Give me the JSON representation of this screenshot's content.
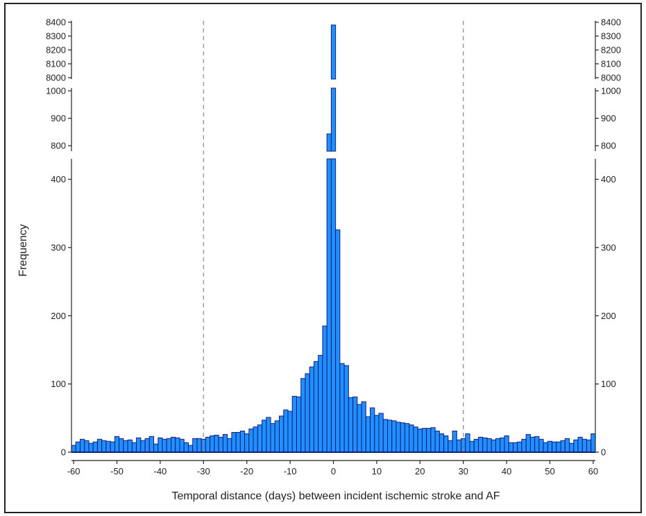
{
  "chart_data": {
    "type": "bar",
    "xlabel": "Temporal distance (days) between incident ischemic stroke and AF",
    "ylabel": "Frequency",
    "x": [
      -60,
      -59,
      -58,
      -57,
      -56,
      -55,
      -54,
      -53,
      -52,
      -51,
      -50,
      -49,
      -48,
      -47,
      -46,
      -45,
      -44,
      -43,
      -42,
      -41,
      -40,
      -39,
      -38,
      -37,
      -36,
      -35,
      -34,
      -33,
      -32,
      -31,
      -30,
      -29,
      -28,
      -27,
      -26,
      -25,
      -24,
      -23,
      -22,
      -21,
      -20,
      -19,
      -18,
      -17,
      -16,
      -15,
      -14,
      -13,
      -12,
      -11,
      -10,
      -9,
      -8,
      -7,
      -6,
      -5,
      -4,
      -3,
      -2,
      -1,
      0,
      1,
      2,
      3,
      4,
      5,
      6,
      7,
      8,
      9,
      10,
      11,
      12,
      13,
      14,
      15,
      16,
      17,
      18,
      19,
      20,
      21,
      22,
      23,
      24,
      25,
      26,
      27,
      28,
      29,
      30,
      31,
      32,
      33,
      34,
      35,
      36,
      37,
      38,
      39,
      40,
      41,
      42,
      43,
      44,
      45,
      46,
      47,
      48,
      49,
      50,
      51,
      52,
      53,
      54,
      55,
      56,
      57,
      58,
      59,
      60
    ],
    "values": [
      10,
      15,
      19,
      17,
      13,
      15,
      19,
      17,
      16,
      15,
      23,
      20,
      17,
      18,
      14,
      21,
      17,
      20,
      23,
      12,
      21,
      19,
      20,
      22,
      21,
      19,
      14,
      10,
      20,
      20,
      19,
      22,
      24,
      25,
      22,
      26,
      20,
      29,
      29,
      31,
      27,
      34,
      37,
      40,
      47,
      51,
      42,
      46,
      53,
      62,
      60,
      82,
      81,
      108,
      115,
      125,
      133,
      142,
      185,
      843,
      8380,
      326,
      130,
      127,
      80,
      81,
      70,
      74,
      52,
      65,
      54,
      57,
      48,
      47,
      46,
      44,
      43,
      42,
      40,
      37,
      34,
      35,
      35,
      36,
      31,
      27,
      24,
      17,
      31,
      18,
      20,
      27,
      16,
      19,
      22,
      21,
      20,
      18,
      20,
      21,
      24,
      14,
      14,
      15,
      19,
      26,
      22,
      23,
      19,
      14,
      16,
      15,
      15,
      17,
      20,
      13,
      18,
      22,
      19,
      18,
      27
    ],
    "xlim": [
      -60,
      60
    ],
    "x_ticks": [
      "-60",
      "-50",
      "-40",
      "-30",
      "-20",
      "-10",
      "0",
      "10",
      "20",
      "30",
      "40",
      "50",
      "60"
    ],
    "y_axis_broken": true,
    "y_segments": [
      {
        "range": [
          0,
          430
        ],
        "ticks": [
          "0",
          "100",
          "200",
          "300",
          "400"
        ]
      },
      {
        "range": [
          780,
          1010
        ],
        "ticks": [
          "800",
          "900",
          "1000"
        ]
      },
      {
        "range": [
          7990,
          8410
        ],
        "ticks": [
          "8000",
          "8100",
          "8200",
          "8300",
          "8400"
        ]
      }
    ],
    "vlines": [
      -30,
      30
    ],
    "vline_style": "dashed",
    "bar_fill": "#1e90ff",
    "bar_edge": "#1a1a7a",
    "secondary_y_axis": "mirrored on right"
  }
}
